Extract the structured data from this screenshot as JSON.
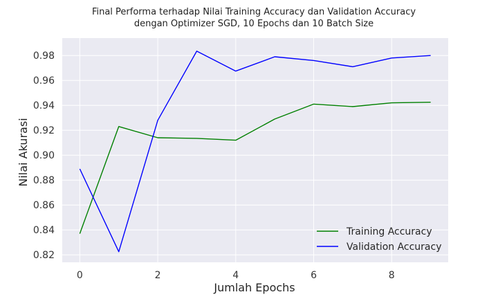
{
  "chart_data": {
    "type": "line",
    "title": "Final Performa terhadap Nilai Training Accuracy dan Validation Accuracy",
    "subtitle": "dengan Optimizer SGD, 10 Epochs dan 10 Batch Size",
    "xlabel": "Jumlah Epochs",
    "ylabel": "Nilai Akurasi",
    "x": [
      0,
      1,
      2,
      3,
      4,
      5,
      6,
      7,
      8,
      9
    ],
    "xlim": [
      -0.45,
      9.45
    ],
    "ylim": [
      0.814,
      0.994
    ],
    "xticks": [
      0,
      2,
      4,
      6,
      8
    ],
    "yticks": [
      0.82,
      0.84,
      0.86,
      0.88,
      0.9,
      0.92,
      0.94,
      0.96,
      0.98
    ],
    "ytick_labels": [
      "0.82",
      "0.84",
      "0.86",
      "0.88",
      "0.90",
      "0.92",
      "0.94",
      "0.96",
      "0.98"
    ],
    "grid": true,
    "legend_position": "lower-right",
    "series": [
      {
        "name": "Training Accuracy",
        "color": "#008000",
        "values": [
          0.837,
          0.923,
          0.914,
          0.9135,
          0.912,
          0.929,
          0.941,
          0.939,
          0.942,
          0.9425
        ]
      },
      {
        "name": "Validation Accuracy",
        "color": "#0000ff",
        "values": [
          0.889,
          0.8225,
          0.928,
          0.9835,
          0.9675,
          0.979,
          0.976,
          0.971,
          0.978,
          0.98
        ]
      }
    ]
  },
  "style": {
    "plot_background": "#eaeaf2",
    "grid_color": "#ffffff"
  }
}
